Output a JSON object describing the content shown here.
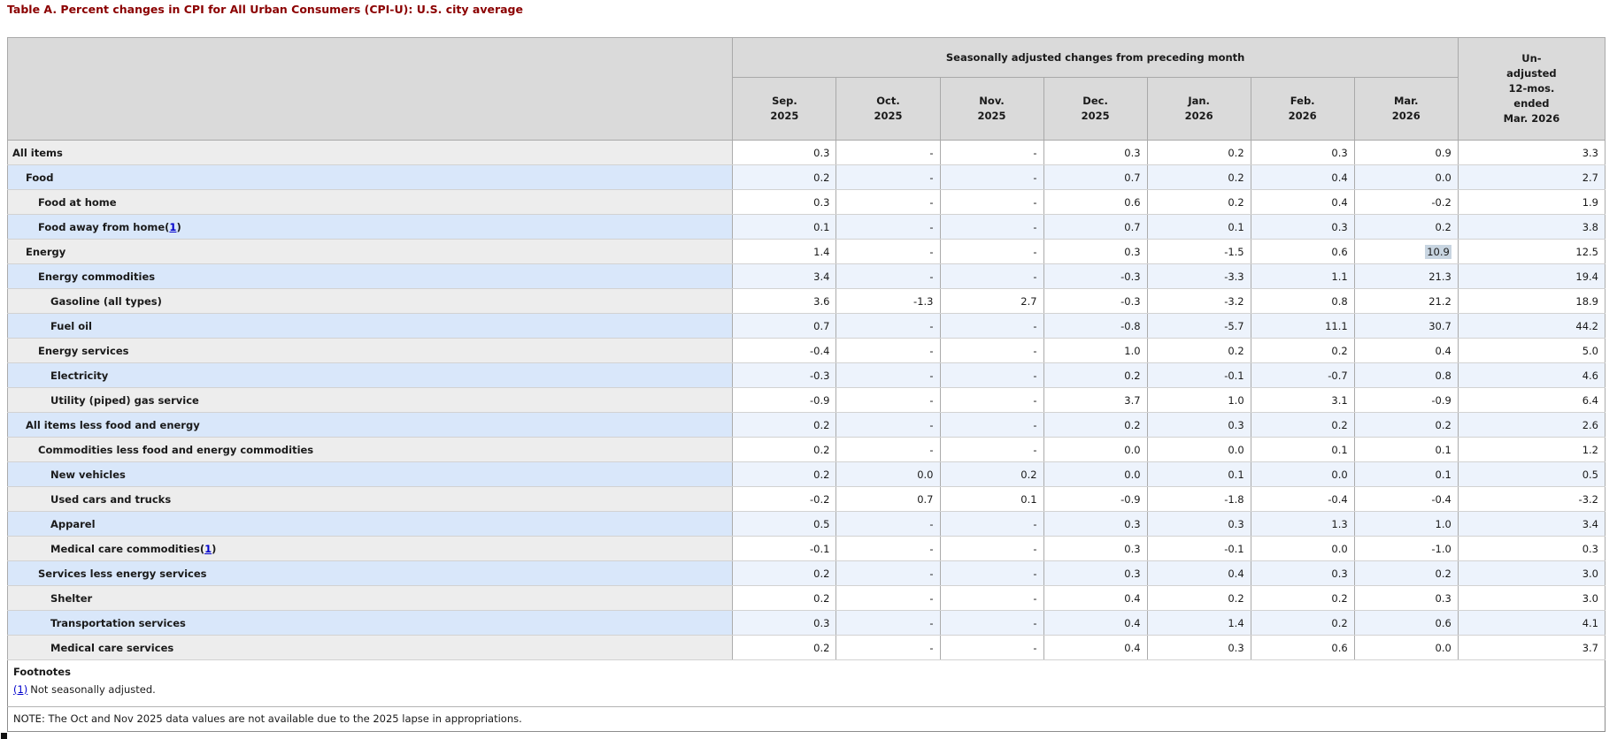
{
  "title": "Table A. Percent changes in CPI for All Urban Consumers (CPI-U): U.S. city average",
  "colors": {
    "title_color": "#8b0000",
    "header_bg": "#dadada",
    "row_gray_label_bg": "#ededed",
    "row_blue_label_bg": "#d9e7fa",
    "row_blue_data_bg": "#edf3fc",
    "link_color": "#0000cc",
    "selection_highlight": "#c8d5e1"
  },
  "table": {
    "group_header": "Seasonally adjusted changes from preceding month",
    "month_headers": [
      [
        "Sep.",
        "2025"
      ],
      [
        "Oct.",
        "2025"
      ],
      [
        "Nov.",
        "2025"
      ],
      [
        "Dec.",
        "2025"
      ],
      [
        "Jan.",
        "2026"
      ],
      [
        "Feb.",
        "2026"
      ],
      [
        "Mar.",
        "2026"
      ]
    ],
    "unadjusted_header_lines": [
      "Un-",
      "adjusted",
      "12-mos.",
      "ended",
      "Mar. 2026"
    ],
    "footnote_marker": {
      "open": "(",
      "digit": "1",
      "close": ")"
    },
    "rows": [
      {
        "label": "All items",
        "indent": 0,
        "footnote": false,
        "values": [
          "0.3",
          "-",
          "-",
          "0.3",
          "0.2",
          "0.3",
          "0.9",
          "3.3"
        ]
      },
      {
        "label": "Food",
        "indent": 1,
        "footnote": false,
        "values": [
          "0.2",
          "-",
          "-",
          "0.7",
          "0.2",
          "0.4",
          "0.0",
          "2.7"
        ]
      },
      {
        "label": "Food at home",
        "indent": 2,
        "footnote": false,
        "values": [
          "0.3",
          "-",
          "-",
          "0.6",
          "0.2",
          "0.4",
          "-0.2",
          "1.9"
        ]
      },
      {
        "label": "Food away from home",
        "indent": 2,
        "footnote": true,
        "values": [
          "0.1",
          "-",
          "-",
          "0.7",
          "0.1",
          "0.3",
          "0.2",
          "3.8"
        ]
      },
      {
        "label": "Energy",
        "indent": 1,
        "footnote": false,
        "values": [
          "1.4",
          "-",
          "-",
          "0.3",
          "-1.5",
          "0.6",
          "10.9",
          "12.5"
        ],
        "highlight_col": 6
      },
      {
        "label": "Energy commodities",
        "indent": 2,
        "footnote": false,
        "values": [
          "3.4",
          "-",
          "-",
          "-0.3",
          "-3.3",
          "1.1",
          "21.3",
          "19.4"
        ]
      },
      {
        "label": "Gasoline (all types)",
        "indent": 3,
        "footnote": false,
        "values": [
          "3.6",
          "-1.3",
          "2.7",
          "-0.3",
          "-3.2",
          "0.8",
          "21.2",
          "18.9"
        ]
      },
      {
        "label": "Fuel oil",
        "indent": 3,
        "footnote": false,
        "values": [
          "0.7",
          "-",
          "-",
          "-0.8",
          "-5.7",
          "11.1",
          "30.7",
          "44.2"
        ]
      },
      {
        "label": "Energy services",
        "indent": 2,
        "footnote": false,
        "values": [
          "-0.4",
          "-",
          "-",
          "1.0",
          "0.2",
          "0.2",
          "0.4",
          "5.0"
        ]
      },
      {
        "label": "Electricity",
        "indent": 3,
        "footnote": false,
        "values": [
          "-0.3",
          "-",
          "-",
          "0.2",
          "-0.1",
          "-0.7",
          "0.8",
          "4.6"
        ]
      },
      {
        "label": "Utility (piped) gas service",
        "indent": 3,
        "footnote": false,
        "values": [
          "-0.9",
          "-",
          "-",
          "3.7",
          "1.0",
          "3.1",
          "-0.9",
          "6.4"
        ]
      },
      {
        "label": "All items less food and energy",
        "indent": 1,
        "footnote": false,
        "values": [
          "0.2",
          "-",
          "-",
          "0.2",
          "0.3",
          "0.2",
          "0.2",
          "2.6"
        ]
      },
      {
        "label": "Commodities less food and energy commodities",
        "indent": 2,
        "footnote": false,
        "values": [
          "0.2",
          "-",
          "-",
          "0.0",
          "0.0",
          "0.1",
          "0.1",
          "1.2"
        ]
      },
      {
        "label": "New vehicles",
        "indent": 3,
        "footnote": false,
        "values": [
          "0.2",
          "0.0",
          "0.2",
          "0.0",
          "0.1",
          "0.0",
          "0.1",
          "0.5"
        ]
      },
      {
        "label": "Used cars and trucks",
        "indent": 3,
        "footnote": false,
        "values": [
          "-0.2",
          "0.7",
          "0.1",
          "-0.9",
          "-1.8",
          "-0.4",
          "-0.4",
          "-3.2"
        ]
      },
      {
        "label": "Apparel",
        "indent": 3,
        "footnote": false,
        "values": [
          "0.5",
          "-",
          "-",
          "0.3",
          "0.3",
          "1.3",
          "1.0",
          "3.4"
        ]
      },
      {
        "label": "Medical care commodities",
        "indent": 3,
        "footnote": true,
        "values": [
          "-0.1",
          "-",
          "-",
          "0.3",
          "-0.1",
          "0.0",
          "-1.0",
          "0.3"
        ]
      },
      {
        "label": "Services less energy services",
        "indent": 2,
        "footnote": false,
        "values": [
          "0.2",
          "-",
          "-",
          "0.3",
          "0.4",
          "0.3",
          "0.2",
          "3.0"
        ]
      },
      {
        "label": "Shelter",
        "indent": 3,
        "footnote": false,
        "values": [
          "0.2",
          "-",
          "-",
          "0.4",
          "0.2",
          "0.2",
          "0.3",
          "3.0"
        ]
      },
      {
        "label": "Transportation services",
        "indent": 3,
        "footnote": false,
        "values": [
          "0.3",
          "-",
          "-",
          "0.4",
          "1.4",
          "0.2",
          "0.6",
          "4.1"
        ]
      },
      {
        "label": "Medical care services",
        "indent": 3,
        "footnote": false,
        "values": [
          "0.2",
          "-",
          "-",
          "0.4",
          "0.3",
          "0.6",
          "0.0",
          "3.7"
        ]
      }
    ],
    "footnotes_title": "Footnotes",
    "footnote_link": "(1)",
    "footnote_text": "Not seasonally adjusted.",
    "note": "NOTE: The Oct and Nov 2025 data values are not available due to the 2025 lapse in appropriations."
  }
}
